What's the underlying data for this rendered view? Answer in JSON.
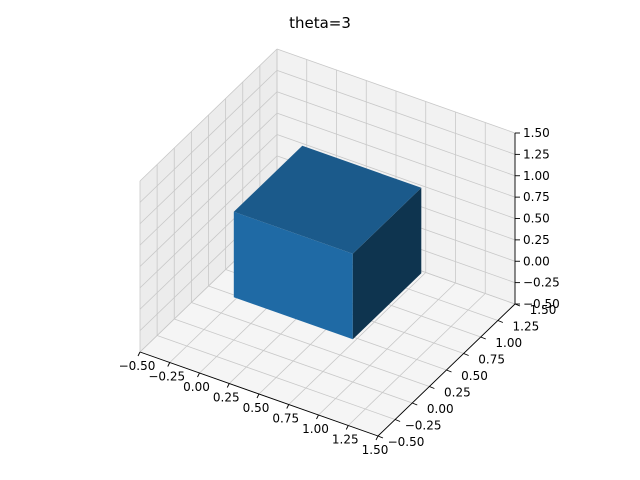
{
  "chart_data": {
    "type": "bar3d",
    "title": "theta=3",
    "xlabel": "",
    "ylabel": "",
    "zlabel": "",
    "xlim": [
      -0.5,
      1.5
    ],
    "ylim": [
      -0.5,
      1.5
    ],
    "zlim": [
      -0.5,
      1.5
    ],
    "x_ticks": [
      "−0.50",
      "−0.25",
      "0.00",
      "0.25",
      "0.50",
      "0.75",
      "1.00",
      "1.25",
      "1.50"
    ],
    "y_ticks": [
      "−0.50",
      "−0.25",
      "0.00",
      "0.25",
      "0.50",
      "0.75",
      "1.00",
      "1.25",
      "1.50"
    ],
    "z_ticks": [
      "−0.50",
      "−0.25",
      "0.00",
      "0.25",
      "0.50",
      "0.75",
      "1.00",
      "1.25",
      "1.50"
    ],
    "grid": true,
    "bars": [
      {
        "x": [
          0,
          1
        ],
        "y": [
          0,
          1
        ],
        "z": [
          0,
          1
        ],
        "color": "#1f77b4"
      }
    ]
  },
  "colors": {
    "bar_front": "#1f6aa5",
    "bar_top": "#1b5a8b",
    "bar_side": "#0e344f",
    "pane_left": "#ececec",
    "pane_back": "#f2f2f2",
    "pane_floor": "#f5f5f5",
    "grid": "#c8c8c8"
  }
}
